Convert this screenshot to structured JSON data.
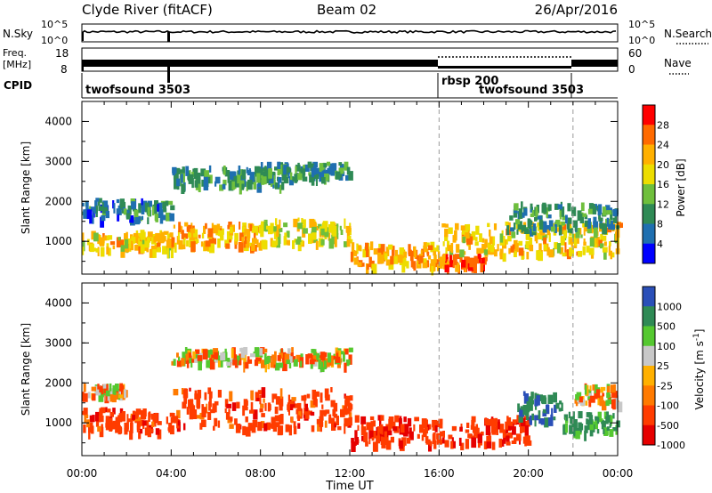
{
  "header": {
    "station": "Clyde River (fitACF)",
    "beam": "Beam 02",
    "date": "26/Apr/2016"
  },
  "top_panels": {
    "nsky_label": "N.Sky",
    "nsky_ticks": [
      "10^5",
      "10^0"
    ],
    "nsearch_label": "N.Search",
    "nsearch_ticks": [
      "10^5",
      "10^0"
    ],
    "freq_label_line1": "Freq.",
    "freq_label_line2": "[MHz]",
    "freq_ticks": [
      "18",
      "8"
    ],
    "nave_label": "Nave",
    "nave_ticks": [
      "60",
      "0"
    ],
    "cpid_label": "CPID",
    "cpid_segments": [
      {
        "name": "twofsound 3503",
        "start_hour": 0,
        "end_hour": 16
      },
      {
        "name": "rbsp 200",
        "start_hour": 16,
        "end_hour": 22
      },
      {
        "name": "twofsound 3503",
        "start_hour": 16,
        "end_hour": 22
      }
    ]
  },
  "x_axis": {
    "label": "Time UT",
    "ticks": [
      "00:00",
      "04:00",
      "08:00",
      "12:00",
      "16:00",
      "20:00",
      "00:00"
    ],
    "range_hours": [
      0,
      24
    ]
  },
  "chart_data": [
    {
      "type": "heatmap",
      "panel": "power",
      "ylabel": "Slant Range [km]",
      "yticks": [
        "1000",
        "2000",
        "3000",
        "4000"
      ],
      "ylim": [
        180,
        4500
      ],
      "colorbar_label": "Power [dB]",
      "colorbar_ticks": [
        "28",
        "24",
        "20",
        "16",
        "12",
        "8",
        "4"
      ],
      "colorbar_colors": [
        "#ff0000",
        "#ff6a00",
        "#ffb000",
        "#eddd00",
        "#6fbf3c",
        "#2f8a55",
        "#1f6fb0",
        "#0000ff"
      ],
      "scatter_regions": [
        {
          "hours": [
            0.0,
            4.0
          ],
          "range_km": [
            800,
            1300
          ],
          "level": 20
        },
        {
          "hours": [
            0.0,
            4.0
          ],
          "range_km": [
            1600,
            2100
          ],
          "level": 8
        },
        {
          "hours": [
            4.0,
            8.0
          ],
          "range_km": [
            900,
            1500
          ],
          "level": 22
        },
        {
          "hours": [
            4.0,
            9.0
          ],
          "range_km": [
            2400,
            2900
          ],
          "level": 10
        },
        {
          "hours": [
            8.0,
            12.0
          ],
          "range_km": [
            1000,
            1600
          ],
          "level": 18
        },
        {
          "hours": [
            8.0,
            12.0
          ],
          "range_km": [
            2600,
            3000
          ],
          "level": 10
        },
        {
          "hours": [
            12.0,
            16.0
          ],
          "range_km": [
            400,
            1000
          ],
          "level": 22
        },
        {
          "hours": [
            16.0,
            18.0
          ],
          "range_km": [
            400,
            700
          ],
          "level": 28
        },
        {
          "hours": [
            16.0,
            24.0
          ],
          "range_km": [
            700,
            1500
          ],
          "level": 20
        },
        {
          "hours": [
            19.0,
            24.0
          ],
          "range_km": [
            1300,
            2000
          ],
          "level": 10
        }
      ]
    },
    {
      "type": "heatmap",
      "panel": "velocity",
      "ylabel": "Slant Range [km]",
      "yticks": [
        "1000",
        "2000",
        "3000",
        "4000"
      ],
      "ylim": [
        180,
        4500
      ],
      "colorbar_label": "Velocity [m s",
      "colorbar_label_sup": "-1",
      "colorbar_ticks": [
        "1000",
        "500",
        "100",
        "25",
        "-25",
        "-100",
        "-500",
        "-1000"
      ],
      "colorbar_colors": [
        "#2a4fb8",
        "#2f8a55",
        "#55c830",
        "#c8c8c8",
        "#ffb000",
        "#ff7a00",
        "#ff3c00",
        "#e60000"
      ],
      "scatter_regions": [
        {
          "hours": [
            0.0,
            4.0
          ],
          "range_km": [
            800,
            1400
          ],
          "level": -300
        },
        {
          "hours": [
            0.0,
            2.0
          ],
          "range_km": [
            1700,
            2000
          ],
          "level": 0
        },
        {
          "hours": [
            4.0,
            12.0
          ],
          "range_km": [
            900,
            1900
          ],
          "level": -300
        },
        {
          "hours": [
            4.0,
            12.0
          ],
          "range_km": [
            2500,
            2900
          ],
          "level": 0
        },
        {
          "hours": [
            12.0,
            20.0
          ],
          "range_km": [
            500,
            1200
          ],
          "level": -400
        },
        {
          "hours": [
            19.5,
            21.5
          ],
          "range_km": [
            1100,
            1800
          ],
          "level": 900
        },
        {
          "hours": [
            21.5,
            24.0
          ],
          "range_km": [
            800,
            1300
          ],
          "level": 600
        },
        {
          "hours": [
            22.0,
            24.0
          ],
          "range_km": [
            1500,
            2000
          ],
          "level": 0
        }
      ]
    }
  ]
}
